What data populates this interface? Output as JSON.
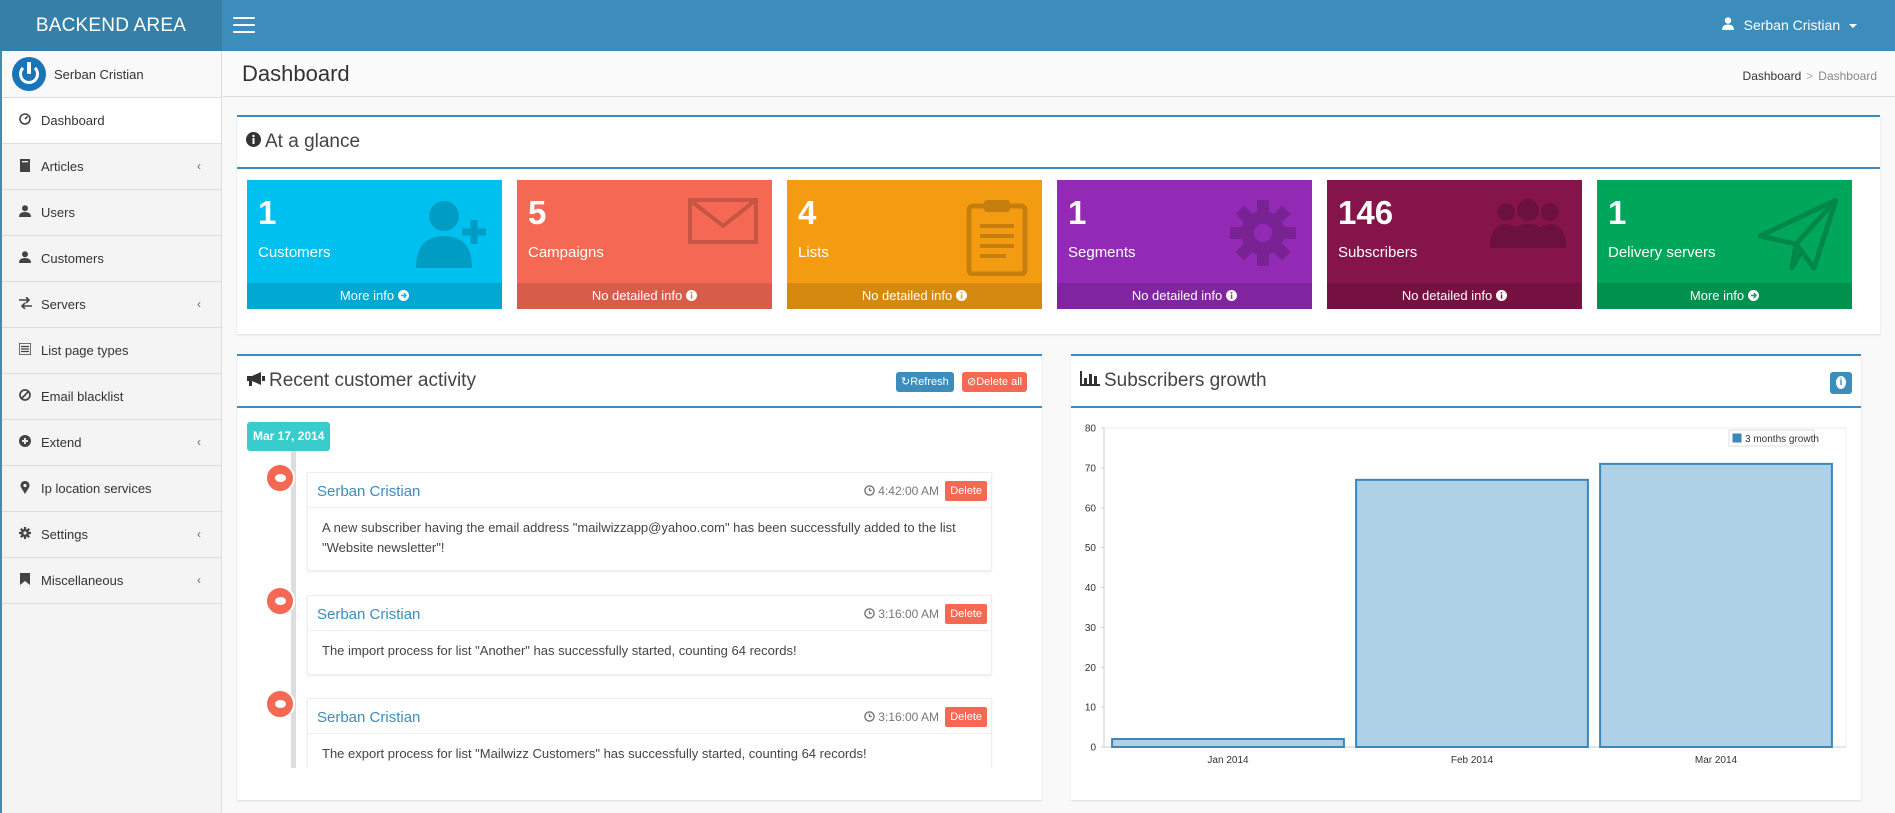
{
  "header": {
    "logo": "BACKEND AREA",
    "user_name": "Serban Cristian"
  },
  "sidebar": {
    "user_name": "Serban Cristian",
    "items": [
      {
        "label": "Dashboard",
        "icon": "dashboard-icon",
        "active": true,
        "chevron": false
      },
      {
        "label": "Articles",
        "icon": "book-icon",
        "chevron": true
      },
      {
        "label": "Users",
        "icon": "user-icon",
        "chevron": false
      },
      {
        "label": "Customers",
        "icon": "user-icon",
        "chevron": false
      },
      {
        "label": "Servers",
        "icon": "exchange-icon",
        "chevron": true
      },
      {
        "label": "List page types",
        "icon": "list-icon",
        "chevron": false
      },
      {
        "label": "Email blacklist",
        "icon": "ban-icon",
        "chevron": false
      },
      {
        "label": "Extend",
        "icon": "plus-circle-icon",
        "chevron": true
      },
      {
        "label": "Ip location services",
        "icon": "map-marker-icon",
        "chevron": false
      },
      {
        "label": "Settings",
        "icon": "gear-icon",
        "chevron": true
      },
      {
        "label": "Miscellaneous",
        "icon": "bookmark-icon",
        "chevron": true
      }
    ]
  },
  "page": {
    "title": "Dashboard",
    "breadcrumb": [
      "Dashboard",
      "Dashboard"
    ],
    "breadcrumb_sep": ">"
  },
  "glance": {
    "title": "At a glance",
    "tiles": [
      {
        "value": "1",
        "label": "Customers",
        "footer": "More info",
        "color": "#00c0ef",
        "icon": "add-user-icon"
      },
      {
        "value": "5",
        "label": "Campaigns",
        "footer": "No detailed info",
        "color": "#f56954",
        "icon": "envelope-icon"
      },
      {
        "value": "4",
        "label": "Lists",
        "footer": "No detailed info",
        "color": "#f39c12",
        "icon": "clipboard-icon"
      },
      {
        "value": "1",
        "label": "Segments",
        "footer": "No detailed info",
        "color": "#932ab6",
        "icon": "gear-icon"
      },
      {
        "value": "146",
        "label": "Subscribers",
        "footer": "No detailed info",
        "color": "#85144b",
        "icon": "users-icon"
      },
      {
        "value": "1",
        "label": "Delivery servers",
        "footer": "More info",
        "color": "#00a65a",
        "icon": "paper-plane-icon"
      }
    ]
  },
  "activity": {
    "title": "Recent customer activity",
    "refresh_label": "Refresh",
    "delete_all_label": "Delete all",
    "date": "Mar 17, 2014",
    "delete_label": "Delete",
    "items": [
      {
        "who": "Serban Cristian",
        "time": "4:42:00 AM",
        "message": "A new subscriber having the email address \"mailwizzapp@yahoo.com\" has been successfully added to the list \"Website newsletter\"!"
      },
      {
        "who": "Serban Cristian",
        "time": "3:16:00 AM",
        "message": "The import process for list \"Another\" has successfully started, counting 64 records!"
      },
      {
        "who": "Serban Cristian",
        "time": "3:16:00 AM",
        "message": "The export process for list \"Mailwizz Customers\" has successfully started, counting 64 records!"
      }
    ]
  },
  "growth": {
    "title": "Subscribers growth"
  },
  "chart_data": {
    "type": "bar",
    "categories": [
      "Jan 2014",
      "Feb 2014",
      "Mar 2014"
    ],
    "series": [
      {
        "name": "3 months growth",
        "values": [
          2,
          67,
          71
        ]
      }
    ],
    "ylim": [
      0,
      80
    ],
    "yticks": [
      0,
      10,
      20,
      30,
      40,
      50,
      60,
      70,
      80
    ],
    "legend": "top-right",
    "bar_color": "#afd1e8",
    "bar_border": "#3a87ba"
  },
  "colors": {
    "primary": "#3c8dbc",
    "danger": "#f56954"
  }
}
